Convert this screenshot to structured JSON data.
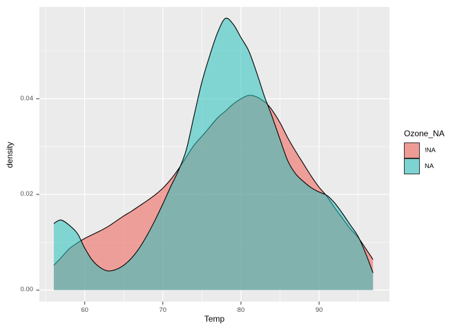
{
  "chart_data": {
    "type": "area",
    "subtype": "density",
    "title": "",
    "xlabel": "Temp",
    "ylabel": "density",
    "panel_bg": "#EBEBEB",
    "grid_color": "#FFFFFF",
    "tick_color": "#333333",
    "axis_text_color": "#4d4d4d",
    "x_axis": {
      "domain": [
        54.2,
        99.0
      ],
      "ticks": [
        {
          "v": 60,
          "label": "60"
        },
        {
          "v": 70,
          "label": "70"
        },
        {
          "v": 80,
          "label": "80"
        },
        {
          "v": 90,
          "label": "90"
        }
      ],
      "minor": [
        55,
        65,
        75,
        85,
        95
      ]
    },
    "y_axis": {
      "domain": [
        -0.0024,
        0.0592
      ],
      "ticks": [
        {
          "v": 0.0,
          "label": "0.00"
        },
        {
          "v": 0.02,
          "label": "0.02"
        },
        {
          "v": 0.04,
          "label": "0.04"
        }
      ],
      "minor": [
        0.01,
        0.03,
        0.05
      ]
    },
    "legend": {
      "title": "Ozone_NA",
      "position": "right",
      "items": [
        {
          "label": "!NA",
          "swatch": "#EE9B95",
          "base_color": "#F8766D"
        },
        {
          "label": "NA",
          "swatch": "#7DD3D1",
          "base_color": "#00BFC4"
        }
      ]
    },
    "series": [
      {
        "name": "!NA",
        "fill_rgba": "rgba(240,112,103,0.62)",
        "stroke": "#000000",
        "points": [
          [
            56.05,
            0.0052
          ],
          [
            57,
            0.0068
          ],
          [
            58,
            0.0086
          ],
          [
            59,
            0.0098
          ],
          [
            60,
            0.0108
          ],
          [
            61,
            0.0116
          ],
          [
            62,
            0.0124
          ],
          [
            63,
            0.0133
          ],
          [
            64,
            0.0144
          ],
          [
            65,
            0.0155
          ],
          [
            66,
            0.0165
          ],
          [
            67,
            0.0176
          ],
          [
            68,
            0.0187
          ],
          [
            69,
            0.0199
          ],
          [
            70,
            0.0213
          ],
          [
            71,
            0.0231
          ],
          [
            72,
            0.0253
          ],
          [
            73,
            0.0278
          ],
          [
            74,
            0.0303
          ],
          [
            75.4,
            0.0329
          ],
          [
            77,
            0.036
          ],
          [
            78,
            0.0374
          ],
          [
            79,
            0.0389
          ],
          [
            80,
            0.04
          ],
          [
            81,
            0.0407
          ],
          [
            82,
            0.0404
          ],
          [
            83,
            0.0394
          ],
          [
            83.4,
            0.0388
          ],
          [
            84,
            0.0376
          ],
          [
            85,
            0.035
          ],
          [
            86,
            0.0318
          ],
          [
            87,
            0.029
          ],
          [
            88,
            0.0264
          ],
          [
            89,
            0.0238
          ],
          [
            90,
            0.0215
          ],
          [
            91,
            0.0196
          ],
          [
            92,
            0.0172
          ],
          [
            93,
            0.015
          ],
          [
            94,
            0.0128
          ],
          [
            95,
            0.011
          ],
          [
            96,
            0.0086
          ],
          [
            96.9,
            0.0064
          ]
        ]
      },
      {
        "name": "NA",
        "fill_rgba": "rgba(40,195,192,0.55)",
        "stroke": "#000000",
        "points": [
          [
            56.05,
            0.0139
          ],
          [
            56.6,
            0.0145
          ],
          [
            57.1,
            0.0146
          ],
          [
            58,
            0.0136
          ],
          [
            59,
            0.012
          ],
          [
            59.5,
            0.0105
          ],
          [
            60,
            0.0088
          ],
          [
            61,
            0.0062
          ],
          [
            62,
            0.0047
          ],
          [
            63,
            0.004
          ],
          [
            64,
            0.0043
          ],
          [
            65,
            0.0052
          ],
          [
            66,
            0.0067
          ],
          [
            67,
            0.0088
          ],
          [
            68,
            0.0115
          ],
          [
            69,
            0.0146
          ],
          [
            70,
            0.018
          ],
          [
            71,
            0.0216
          ],
          [
            72,
            0.025
          ],
          [
            73,
            0.0293
          ],
          [
            74,
            0.0365
          ],
          [
            75,
            0.0435
          ],
          [
            76,
            0.049
          ],
          [
            77,
            0.0538
          ],
          [
            78,
            0.0568
          ],
          [
            79,
            0.0556
          ],
          [
            80,
            0.0528
          ],
          [
            81,
            0.05
          ],
          [
            82,
            0.0455
          ],
          [
            83,
            0.0405
          ],
          [
            83.4,
            0.0388
          ],
          [
            84,
            0.0362
          ],
          [
            85,
            0.0315
          ],
          [
            86,
            0.027
          ],
          [
            87,
            0.0243
          ],
          [
            88,
            0.0227
          ],
          [
            89,
            0.0214
          ],
          [
            90,
            0.0205
          ],
          [
            91,
            0.0198
          ],
          [
            92,
            0.0182
          ],
          [
            93,
            0.016
          ],
          [
            94,
            0.0136
          ],
          [
            95,
            0.0112
          ],
          [
            96,
            0.0075
          ],
          [
            96.9,
            0.0036
          ]
        ]
      }
    ]
  }
}
